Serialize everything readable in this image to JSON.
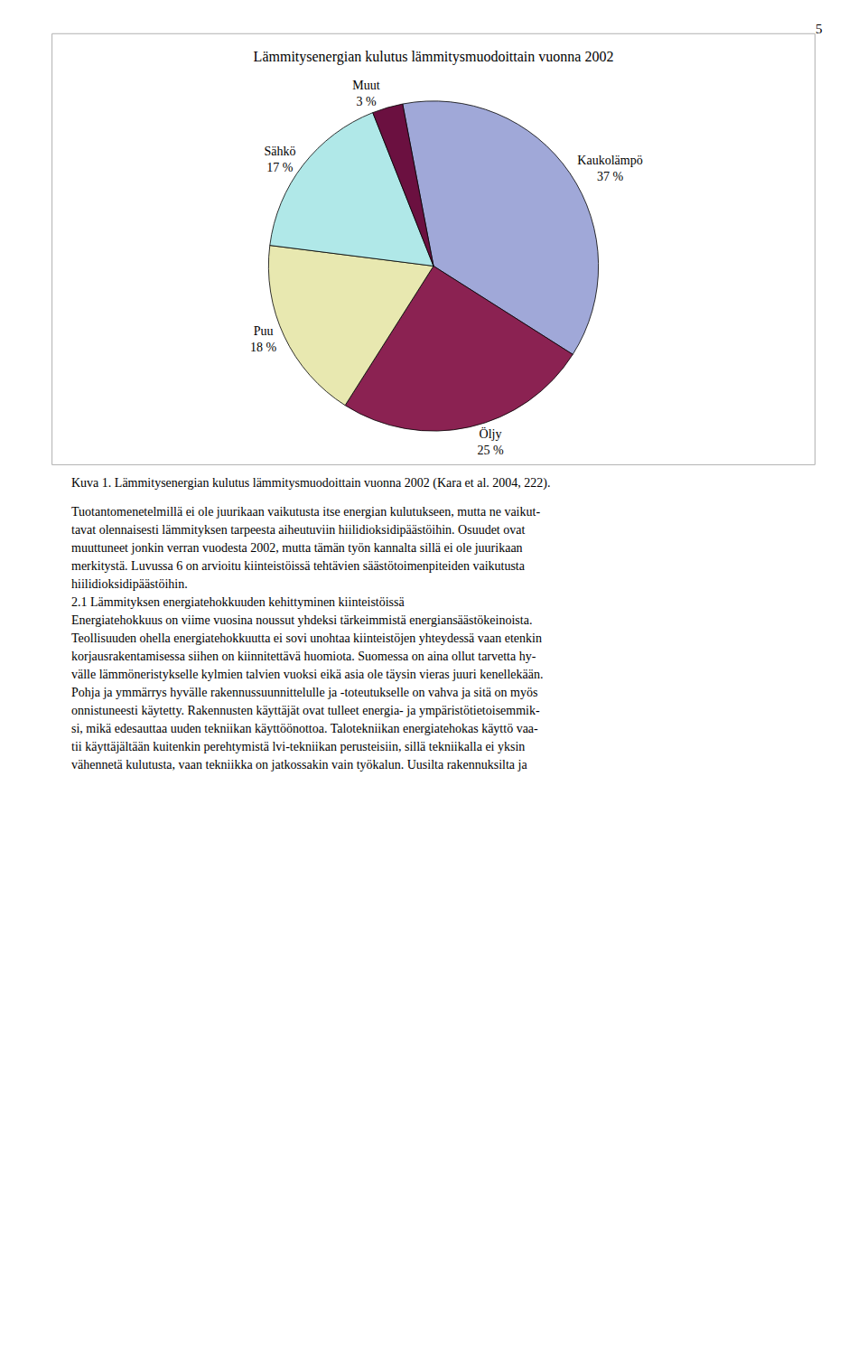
{
  "chart_data": {
    "type": "pie",
    "title": "Lämmitysenergian kulutus lämmitysmuodoittain vuonna 2002",
    "categories": [
      "Kaukolämpö",
      "Öljy",
      "Puu",
      "Sähkö",
      "Muut"
    ],
    "values": [
      37,
      25,
      18,
      17,
      3
    ],
    "value_labels": [
      "37 %",
      "25 %",
      "18 %",
      "17 %",
      "3 %"
    ],
    "colors": [
      "#a0a8d8",
      "#8b2252",
      "#e8e8b0",
      "#b0e8e8",
      "#6b1040"
    ],
    "data_labels": true,
    "annotations": [
      "5",
      "Kuva 1. Lämmitysenergian kulutus lämmitysmuodoittain vuonna 2002 (Kara et al. 2004, 222).",
      "Tuotantomenetelmillä ei ole juurikaan vaikutusta itse energian kulutukseen, mutta ne vaikut-",
      "tavat olennaisesti lämmityksen tarpeesta aiheutuviin hiilidioksidipäästöihin. Osuudet ovat",
      "muuttuneet jonkin verran vuodesta 2002, mutta tämän työn kannalta sillä ei ole juurikaan",
      "merkitystä. Luvussa 6 on arvioitu kiinteistöissä tehtävien säästötoimenpiteiden vaikutusta",
      "hiilidioksidipäästöihin.",
      "2.1 Lämmityksen energiatehokkuuden kehittyminen kiinteistöissä",
      "Energiatehokkuus on viime vuosina noussut yhdeksi tärkeimmistä energiansäästökeinoista.",
      "Teollisuuden ohella energiatehokkuutta ei sovi unohtaa kiinteistöjen yhteydessä vaan etenkin",
      "korjausrakentamisessa siihen on kiinnitettävä huomiota. Suomessa on aina ollut tarvetta hy-",
      "välle lämmöneristykselle kylmien talvien vuoksi eikä asia ole täysin vieras juuri kenellekään.",
      "Pohja ja ymmärrys hyvälle rakennussuunnittelulle ja -toteutukselle on vahva ja sitä on myös",
      "onnistuneesti käytetty. Rakennusten käyttäjät ovat tulleet energia- ja ympäristötietoisemmik-",
      "si, mikä edesauttaa uuden tekniikan käyttöönottoa. Talotekniikan energiatehokas käyttö vaa-",
      "tii käyttäjältään kuitenkin perehtymistä lvi-tekniikan perusteisiin, sillä tekniikalla ei yksin",
      "vähennetä kulutusta, vaan tekniikka on jatkossakin vain työkalun. Uusilta rakennuksilta ja"
    ]
  }
}
